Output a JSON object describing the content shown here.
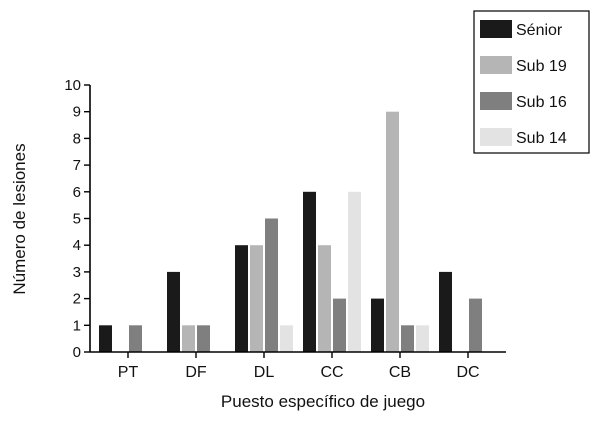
{
  "chart_data": {
    "type": "bar",
    "title": "",
    "xlabel": "Puesto específico de juego",
    "ylabel": "Número de lesiones",
    "categories": [
      "PT",
      "DF",
      "DL",
      "CC",
      "CB",
      "DC"
    ],
    "series": [
      {
        "name": "Sénior",
        "color": "#1a1a1a",
        "values": [
          1,
          3,
          4,
          6,
          2,
          3
        ]
      },
      {
        "name": "Sub 19",
        "color": "#b5b5b5",
        "values": [
          0,
          1,
          4,
          4,
          9,
          0
        ]
      },
      {
        "name": "Sub 16",
        "color": "#7f7f7f",
        "values": [
          1,
          1,
          5,
          2,
          1,
          2
        ]
      },
      {
        "name": "Sub 14",
        "color": "#e3e3e3",
        "values": [
          0,
          0,
          1,
          6,
          1,
          0
        ]
      }
    ],
    "ylim": [
      0,
      10
    ],
    "yticks": [
      0,
      1,
      2,
      3,
      4,
      5,
      6,
      7,
      8,
      9,
      10
    ],
    "grid": false,
    "legend_position": "top-right"
  }
}
